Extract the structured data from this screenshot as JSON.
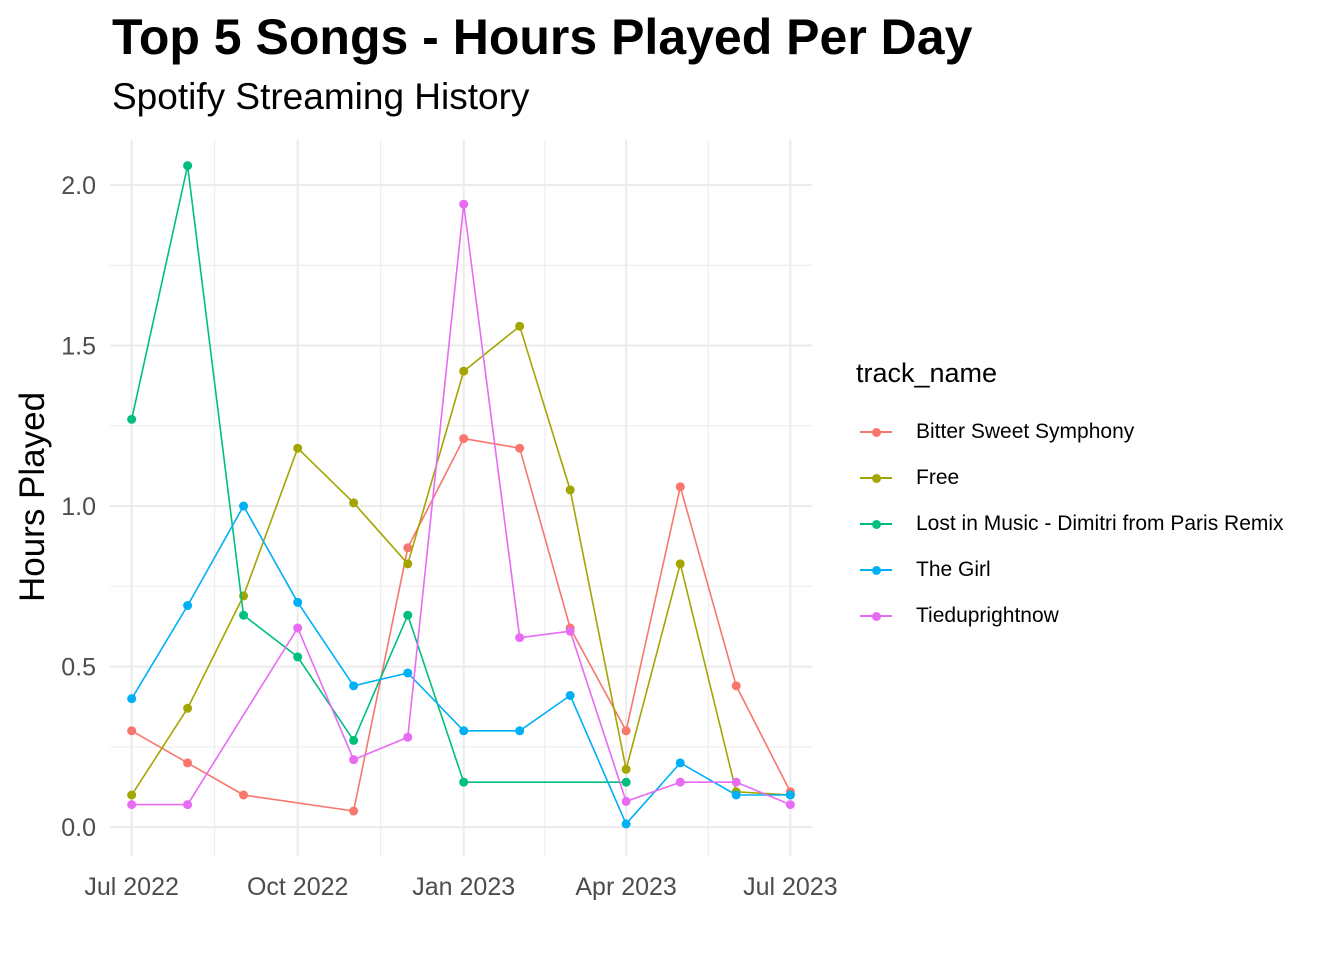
{
  "chart_data": {
    "type": "line",
    "title": "Top 5 Songs - Hours Played Per Day",
    "subtitle": "Spotify Streaming History",
    "xlabel": "",
    "ylabel": "Hours Played",
    "x_ticks": [
      "Jul 2022",
      "Oct 2022",
      "Jan 2023",
      "Apr 2023",
      "Jul 2023"
    ],
    "y_ticks": [
      "0.0",
      "0.5",
      "1.0",
      "1.5",
      "2.0"
    ],
    "ylim": [
      -0.09,
      2.14
    ],
    "xlim": [
      "2022-06-19",
      "2023-07-13"
    ],
    "grid": true,
    "legend_title": "track_name",
    "legend_position": "right",
    "series": [
      {
        "name": "Bitter Sweet Symphony",
        "color": "#F8766D",
        "points": [
          [
            "2022-07-01",
            0.3
          ],
          [
            "2022-08-01",
            0.2
          ],
          [
            "2022-09-01",
            0.1
          ],
          [
            "2022-11-01",
            0.05
          ],
          [
            "2022-12-01",
            0.87
          ],
          [
            "2023-01-01",
            1.21
          ],
          [
            "2023-02-01",
            1.18
          ],
          [
            "2023-03-01",
            0.62
          ],
          [
            "2023-04-01",
            0.3
          ],
          [
            "2023-05-01",
            1.06
          ],
          [
            "2023-06-01",
            0.44
          ],
          [
            "2023-07-01",
            0.11
          ]
        ]
      },
      {
        "name": "Free",
        "color": "#A3A500",
        "points": [
          [
            "2022-07-01",
            0.1
          ],
          [
            "2022-08-01",
            0.37
          ],
          [
            "2022-09-01",
            0.72
          ],
          [
            "2022-10-01",
            1.18
          ],
          [
            "2022-11-01",
            1.01
          ],
          [
            "2022-12-01",
            0.82
          ],
          [
            "2023-01-01",
            1.42
          ],
          [
            "2023-02-01",
            1.56
          ],
          [
            "2023-03-01",
            1.05
          ],
          [
            "2023-04-01",
            0.18
          ],
          [
            "2023-05-01",
            0.82
          ],
          [
            "2023-06-01",
            0.11
          ],
          [
            "2023-07-01",
            0.1
          ]
        ]
      },
      {
        "name": "Lost in Music - Dimitri from Paris Remix",
        "color": "#00BF7D",
        "points": [
          [
            "2022-07-01",
            1.27
          ],
          [
            "2022-08-01",
            2.06
          ],
          [
            "2022-09-01",
            0.66
          ],
          [
            "2022-10-01",
            0.53
          ],
          [
            "2022-11-01",
            0.27
          ],
          [
            "2022-12-01",
            0.66
          ],
          [
            "2023-01-01",
            0.14
          ],
          [
            "2023-04-01",
            0.14
          ]
        ]
      },
      {
        "name": "The Girl",
        "color": "#00B0F6",
        "points": [
          [
            "2022-07-01",
            0.4
          ],
          [
            "2022-08-01",
            0.69
          ],
          [
            "2022-09-01",
            1.0
          ],
          [
            "2022-10-01",
            0.7
          ],
          [
            "2022-11-01",
            0.44
          ],
          [
            "2022-12-01",
            0.48
          ],
          [
            "2023-01-01",
            0.3
          ],
          [
            "2023-02-01",
            0.3
          ],
          [
            "2023-03-01",
            0.41
          ],
          [
            "2023-04-01",
            0.01
          ],
          [
            "2023-05-01",
            0.2
          ],
          [
            "2023-06-01",
            0.1
          ],
          [
            "2023-07-01",
            0.1
          ]
        ]
      },
      {
        "name": "Tieduprightnow",
        "color": "#E76BF3",
        "points": [
          [
            "2022-07-01",
            0.07
          ],
          [
            "2022-08-01",
            0.07
          ],
          [
            "2022-10-01",
            0.62
          ],
          [
            "2022-11-01",
            0.21
          ],
          [
            "2022-12-01",
            0.28
          ],
          [
            "2023-01-01",
            1.94
          ],
          [
            "2023-02-01",
            0.59
          ],
          [
            "2023-03-01",
            0.61
          ],
          [
            "2023-04-01",
            0.08
          ],
          [
            "2023-05-01",
            0.14
          ],
          [
            "2023-06-01",
            0.14
          ],
          [
            "2023-07-01",
            0.07
          ]
        ]
      }
    ]
  }
}
